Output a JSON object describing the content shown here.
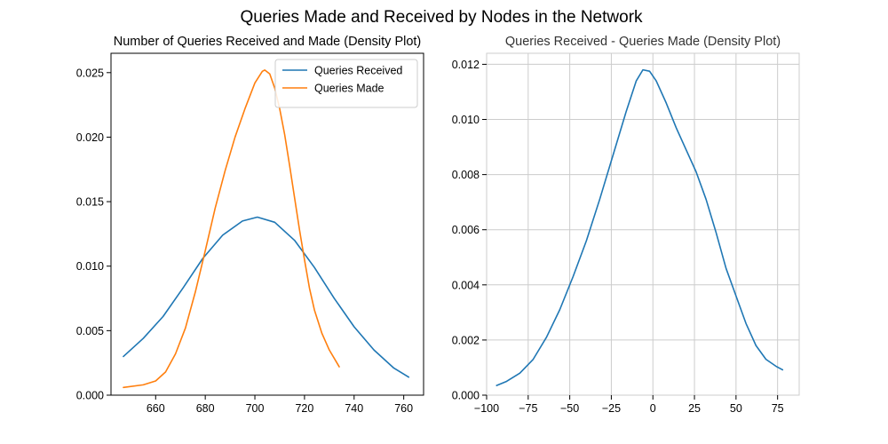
{
  "figure": {
    "suptitle": "Queries Made and Received by Nodes in the Network"
  },
  "chart_data": [
    {
      "type": "line",
      "title": "Number of Queries Received and Made (Density Plot)",
      "xlabel": "",
      "ylabel": "",
      "xlim": [
        642,
        768
      ],
      "ylim": [
        0,
        0.0265
      ],
      "xticks": [
        660,
        680,
        700,
        720,
        740,
        760
      ],
      "yticks": [
        0.0,
        0.005,
        0.01,
        0.015,
        0.02,
        0.025
      ],
      "xtick_labels": [
        "660",
        "680",
        "700",
        "720",
        "740",
        "760"
      ],
      "ytick_labels": [
        "0.000",
        "0.005",
        "0.010",
        "0.015",
        "0.020",
        "0.025"
      ],
      "grid": false,
      "legend_position": "top-right",
      "series": [
        {
          "name": "Queries Received",
          "color": "#1f77b4",
          "x": [
            647,
            655,
            663,
            671,
            679,
            687,
            695,
            701,
            708,
            716,
            724,
            732,
            740,
            748,
            756,
            762
          ],
          "y": [
            0.003,
            0.0044,
            0.0061,
            0.0083,
            0.0106,
            0.0124,
            0.0135,
            0.0138,
            0.0134,
            0.012,
            0.0099,
            0.0075,
            0.0053,
            0.0035,
            0.0021,
            0.0014
          ]
        },
        {
          "name": "Queries Made",
          "color": "#ff7f0e",
          "x": [
            647,
            655,
            660,
            664,
            668,
            672,
            676,
            680,
            684,
            688,
            692,
            696,
            700,
            703,
            704,
            706,
            708,
            710,
            712,
            714,
            716,
            718,
            720,
            722,
            724,
            727,
            730,
            734
          ],
          "y": [
            0.0006,
            0.0008,
            0.0011,
            0.0018,
            0.0032,
            0.0052,
            0.008,
            0.0112,
            0.0145,
            0.0174,
            0.02,
            0.0222,
            0.0242,
            0.0251,
            0.0252,
            0.0249,
            0.0238,
            0.0222,
            0.0202,
            0.0178,
            0.0153,
            0.0128,
            0.0105,
            0.0083,
            0.0066,
            0.0048,
            0.0035,
            0.0022
          ]
        }
      ]
    },
    {
      "type": "line",
      "title": "Queries Received - Queries Made (Density Plot)",
      "xlabel": "",
      "ylabel": "",
      "xlim": [
        -100,
        88
      ],
      "ylim": [
        0,
        0.0124
      ],
      "xticks": [
        -100,
        -75,
        -50,
        -25,
        0,
        25,
        50,
        75
      ],
      "yticks": [
        0.0,
        0.002,
        0.004,
        0.006,
        0.008,
        0.01,
        0.012
      ],
      "xtick_labels": [
        "−100",
        "−75",
        "−50",
        "−25",
        "0",
        "25",
        "50",
        "75"
      ],
      "ytick_labels": [
        "0.000",
        "0.002",
        "0.004",
        "0.006",
        "0.008",
        "0.010",
        "0.012"
      ],
      "grid": true,
      "series": [
        {
          "name": "",
          "color": "#1f77b4",
          "x": [
            -94,
            -88,
            -80,
            -72,
            -64,
            -56,
            -48,
            -40,
            -32,
            -24,
            -16,
            -10,
            -6,
            -2,
            2,
            8,
            14,
            20,
            26,
            32,
            38,
            44,
            50,
            56,
            62,
            68,
            74,
            78
          ],
          "y": [
            0.00035,
            0.0005,
            0.0008,
            0.0013,
            0.0021,
            0.0031,
            0.0043,
            0.0056,
            0.0071,
            0.0087,
            0.0103,
            0.0114,
            0.0118,
            0.01175,
            0.0114,
            0.0106,
            0.0097,
            0.0089,
            0.0081,
            0.0071,
            0.0059,
            0.0046,
            0.0036,
            0.0026,
            0.0018,
            0.0013,
            0.00105,
            0.00092
          ]
        }
      ]
    }
  ]
}
